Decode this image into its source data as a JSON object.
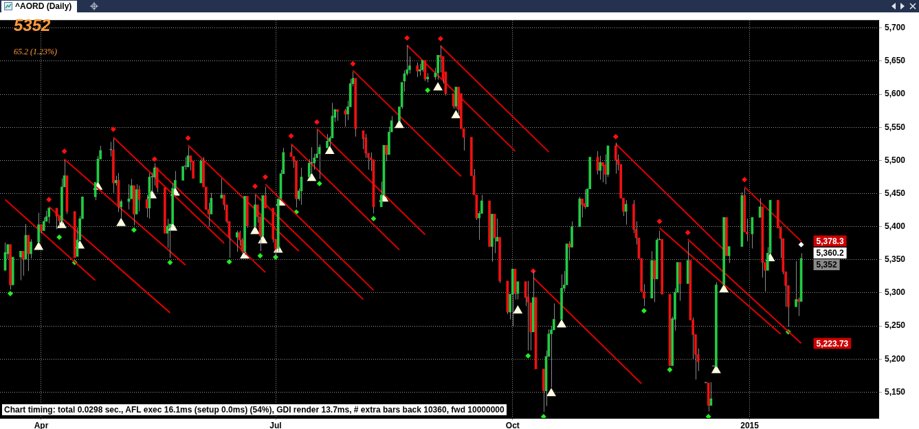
{
  "chart_data": {
    "type": "candlestick",
    "title": "^AORD (Daily)",
    "annotations": [
      "5352",
      "65.2  (1.23%)",
      "Chart timing: total 0.0298 sec., AFL exec 16.1ms (setup 0.0ms) (54%), GDI render 13.7ms, # extra bars back 10360, fwd 10000000",
      {
        "text": "5,378.3",
        "x": "2015-01-21",
        "y": 5378.3
      },
      {
        "text": "5,360.2",
        "x": "2015-01-21",
        "y": 5360.2
      },
      {
        "text": "5,352",
        "x": "2015-01-21",
        "y": 5352
      },
      {
        "text": "5,223.73",
        "x": "2015-01-21",
        "y": 5223.73
      }
    ],
    "x": [
      "2014-03-18",
      "2014-03-19",
      "2014-03-20",
      "2014-03-21",
      "2014-03-24",
      "2014-03-25",
      "2014-03-26",
      "2014-03-27",
      "2014-03-28",
      "2014-03-31",
      "2014-04-01",
      "2014-04-02",
      "2014-04-03",
      "2014-04-04",
      "2014-04-07",
      "2014-04-08",
      "2014-04-09",
      "2014-04-10",
      "2014-04-11",
      "2014-04-14",
      "2014-04-15",
      "2014-04-16",
      "2014-04-17",
      "2014-04-22",
      "2014-04-23",
      "2014-04-24",
      "2014-04-28",
      "2014-04-29",
      "2014-04-30",
      "2014-05-01",
      "2014-05-02",
      "2014-05-05",
      "2014-05-06",
      "2014-05-07",
      "2014-05-08",
      "2014-05-09",
      "2014-05-12",
      "2014-05-13",
      "2014-05-14",
      "2014-05-15",
      "2014-05-16",
      "2014-05-19",
      "2014-05-20",
      "2014-05-21",
      "2014-05-22",
      "2014-05-23",
      "2014-05-26",
      "2014-05-27",
      "2014-05-28",
      "2014-05-29",
      "2014-05-30",
      "2014-06-02",
      "2014-06-03",
      "2014-06-04",
      "2014-06-05",
      "2014-06-06",
      "2014-06-10",
      "2014-06-11",
      "2014-06-12",
      "2014-06-13",
      "2014-06-16",
      "2014-06-17",
      "2014-06-18",
      "2014-06-19",
      "2014-06-20",
      "2014-06-23",
      "2014-06-24",
      "2014-06-25",
      "2014-06-26",
      "2014-06-27",
      "2014-06-30",
      "2014-07-01",
      "2014-07-02",
      "2014-07-03",
      "2014-07-04",
      "2014-07-07",
      "2014-07-08",
      "2014-07-09",
      "2014-07-10",
      "2014-07-11",
      "2014-07-14",
      "2014-07-15",
      "2014-07-16",
      "2014-07-17",
      "2014-07-18",
      "2014-07-21",
      "2014-07-22",
      "2014-07-23",
      "2014-07-24",
      "2014-07-25",
      "2014-07-28",
      "2014-07-29",
      "2014-07-30",
      "2014-07-31",
      "2014-08-01",
      "2014-08-04",
      "2014-08-05",
      "2014-08-06",
      "2014-08-07",
      "2014-08-08",
      "2014-08-11",
      "2014-08-12",
      "2014-08-13",
      "2014-08-14",
      "2014-08-15",
      "2014-08-18",
      "2014-08-19",
      "2014-08-20",
      "2014-08-21",
      "2014-08-22",
      "2014-08-25",
      "2014-08-26",
      "2014-08-27",
      "2014-08-28",
      "2014-08-29",
      "2014-09-01",
      "2014-09-02",
      "2014-09-03",
      "2014-09-04",
      "2014-09-05",
      "2014-09-08",
      "2014-09-09",
      "2014-09-10",
      "2014-09-11",
      "2014-09-12",
      "2014-09-15",
      "2014-09-16",
      "2014-09-17",
      "2014-09-18",
      "2014-09-19",
      "2014-09-22",
      "2014-09-23",
      "2014-09-24",
      "2014-09-25",
      "2014-09-26",
      "2014-09-29",
      "2014-09-30",
      "2014-10-01",
      "2014-10-02",
      "2014-10-03",
      "2014-10-06",
      "2014-10-07",
      "2014-10-08",
      "2014-10-09",
      "2014-10-10",
      "2014-10-13",
      "2014-10-14",
      "2014-10-15",
      "2014-10-16",
      "2014-10-17",
      "2014-10-20",
      "2014-10-21",
      "2014-10-22",
      "2014-10-23",
      "2014-10-24",
      "2014-10-27",
      "2014-10-28",
      "2014-10-29",
      "2014-10-30",
      "2014-10-31",
      "2014-11-03",
      "2014-11-04",
      "2014-11-05",
      "2014-11-06",
      "2014-11-07",
      "2014-11-10",
      "2014-11-11",
      "2014-11-12",
      "2014-11-13",
      "2014-11-14",
      "2014-11-17",
      "2014-11-18",
      "2014-11-19",
      "2014-11-20",
      "2014-11-21",
      "2014-11-24",
      "2014-11-25",
      "2014-11-26",
      "2014-11-27",
      "2014-11-28",
      "2014-12-01",
      "2014-12-02",
      "2014-12-03",
      "2014-12-04",
      "2014-12-05",
      "2014-12-08",
      "2014-12-09",
      "2014-12-10",
      "2014-12-11",
      "2014-12-12",
      "2014-12-15",
      "2014-12-16",
      "2014-12-17",
      "2014-12-18",
      "2014-12-19",
      "2014-12-22",
      "2014-12-23",
      "2014-12-24",
      "2014-12-29",
      "2014-12-30",
      "2014-12-31",
      "2015-01-02",
      "2015-01-05",
      "2015-01-06",
      "2015-01-07",
      "2015-01-08",
      "2015-01-09",
      "2015-01-12",
      "2015-01-13",
      "2015-01-14",
      "2015-01-15",
      "2015-01-16",
      "2015-01-19",
      "2015-01-20",
      "2015-01-21"
    ],
    "ohlc": [
      [
        5334,
        5376,
        5332,
        5361
      ],
      [
        5359,
        5373,
        5351,
        5373
      ],
      [
        5373,
        5374,
        5305,
        5312
      ],
      [
        5312,
        5355,
        5311,
        5354
      ],
      [
        5354,
        5363,
        5319,
        5363
      ],
      [
        5363,
        5364,
        5326,
        5351
      ],
      [
        5351,
        5404,
        5350,
        5387
      ],
      [
        5387,
        5388,
        5333,
        5359
      ],
      [
        5359,
        5381,
        5352,
        5377
      ],
      [
        5377,
        5421,
        5376,
        5403
      ],
      [
        5403,
        5404,
        5390,
        5394
      ],
      [
        5394,
        5414,
        5393,
        5408
      ],
      [
        5408,
        5424,
        5406,
        5415
      ],
      [
        5415,
        5429,
        5405,
        5428
      ],
      [
        5428,
        5429,
        5396,
        5416
      ],
      [
        5416,
        5417,
        5400,
        5409
      ],
      [
        5409,
        5473,
        5405,
        5460
      ],
      [
        5460,
        5500,
        5459,
        5477
      ],
      [
        5477,
        5478,
        5419,
        5423
      ],
      [
        5423,
        5424,
        5352,
        5353
      ],
      [
        5355,
        5399,
        5353,
        5380
      ],
      [
        5380,
        5416,
        5378,
        5412
      ],
      [
        5412,
        5446,
        5410,
        5445
      ],
      [
        5445,
        5468,
        5440,
        5467
      ],
      [
        5467,
        5507,
        5466,
        5502
      ],
      [
        5502,
        5522,
        5500,
        5515
      ],
      [
        5516,
        5528,
        5506,
        5516
      ],
      [
        5516,
        5533,
        5451,
        5466
      ],
      [
        5466,
        5477,
        5462,
        5470
      ],
      [
        5470,
        5481,
        5422,
        5430
      ],
      [
        5430,
        5441,
        5412,
        5438
      ],
      [
        5438,
        5464,
        5426,
        5442
      ],
      [
        5442,
        5472,
        5440,
        5462
      ],
      [
        5462,
        5464,
        5402,
        5419
      ],
      [
        5419,
        5464,
        5418,
        5456
      ],
      [
        5456,
        5462,
        5423,
        5441
      ],
      [
        5441,
        5448,
        5414,
        5428
      ],
      [
        5428,
        5481,
        5412,
        5475
      ],
      [
        5475,
        5482,
        5453,
        5475
      ],
      [
        5475,
        5496,
        5462,
        5489
      ],
      [
        5489,
        5490,
        5452,
        5459
      ],
      [
        5459,
        5460,
        5389,
        5390
      ],
      [
        5390,
        5412,
        5368,
        5401
      ],
      [
        5399,
        5406,
        5353,
        5404
      ],
      [
        5404,
        5466,
        5403,
        5458
      ],
      [
        5458,
        5484,
        5457,
        5470
      ],
      [
        5470,
        5492,
        5469,
        5491
      ],
      [
        5491,
        5505,
        5486,
        5491
      ],
      [
        5490,
        5520,
        5489,
        5507
      ],
      [
        5507,
        5508,
        5485,
        5498
      ],
      [
        5499,
        5501,
        5472,
        5473
      ],
      [
        5466,
        5502,
        5464,
        5499
      ],
      [
        5499,
        5505,
        5459,
        5460
      ],
      [
        5460,
        5461,
        5424,
        5426
      ],
      [
        5426,
        5436,
        5400,
        5419
      ],
      [
        5419,
        5451,
        5417,
        5443
      ],
      [
        5443,
        5473,
        5441,
        5448
      ],
      [
        5448,
        5449,
        5425,
        5433
      ],
      [
        5433,
        5434,
        5405,
        5408
      ],
      [
        5408,
        5409,
        5353,
        5384
      ],
      [
        5384,
        5394,
        5362,
        5391
      ],
      [
        5391,
        5394,
        5371,
        5380
      ],
      [
        5380,
        5383,
        5360,
        5363
      ],
      [
        5363,
        5448,
        5357,
        5446
      ],
      [
        5446,
        5447,
        5398,
        5401
      ],
      [
        5401,
        5448,
        5398,
        5433
      ],
      [
        5433,
        5434,
        5406,
        5415
      ],
      [
        5415,
        5416,
        5363,
        5386
      ],
      [
        5386,
        5448,
        5384,
        5447
      ],
      [
        5447,
        5460,
        5427,
        5428
      ],
      [
        5428,
        5429,
        5376,
        5381
      ],
      [
        5381,
        5382,
        5352,
        5366
      ],
      [
        5367,
        5444,
        5362,
        5442
      ],
      [
        5443,
        5486,
        5441,
        5480
      ],
      [
        5480,
        5519,
        5478,
        5512
      ],
      [
        5512,
        5523,
        5505,
        5506
      ],
      [
        5506,
        5507,
        5489,
        5499
      ],
      [
        5499,
        5500,
        5429,
        5442
      ],
      [
        5442,
        5458,
        5439,
        5454
      ],
      [
        5454,
        5489,
        5433,
        5475
      ],
      [
        5475,
        5502,
        5473,
        5496
      ],
      [
        5496,
        5520,
        5480,
        5496
      ],
      [
        5496,
        5510,
        5486,
        5504
      ],
      [
        5504,
        5546,
        5502,
        5510
      ],
      [
        5510,
        5524,
        5472,
        5520
      ],
      [
        5519,
        5540,
        5517,
        5529
      ],
      [
        5529,
        5537,
        5520,
        5534
      ],
      [
        5534,
        5587,
        5532,
        5567
      ],
      [
        5565,
        5579,
        5558,
        5577
      ],
      [
        5577,
        5579,
        5560,
        5574
      ],
      [
        5575,
        5578,
        5551,
        5570
      ],
      [
        5570,
        5590,
        5561,
        5581
      ],
      [
        5581,
        5623,
        5579,
        5616
      ],
      [
        5616,
        5634,
        5612,
        5624
      ],
      [
        5624,
        5625,
        5536,
        5548
      ],
      [
        5545,
        5546,
        5517,
        5533
      ],
      [
        5534,
        5540,
        5504,
        5511
      ],
      [
        5511,
        5512,
        5486,
        5504
      ],
      [
        5504,
        5512,
        5484,
        5501
      ],
      [
        5501,
        5502,
        5420,
        5430
      ],
      [
        5430,
        5468,
        5428,
        5448
      ],
      [
        5448,
        5525,
        5446,
        5523
      ],
      [
        5523,
        5524,
        5499,
        5509
      ],
      [
        5509,
        5551,
        5508,
        5543
      ],
      [
        5543,
        5567,
        5541,
        5560
      ],
      [
        5560,
        5583,
        5559,
        5581
      ],
      [
        5581,
        5620,
        5578,
        5618
      ],
      [
        5620,
        5636,
        5604,
        5631
      ],
      [
        5631,
        5674,
        5628,
        5637
      ],
      [
        5637,
        5657,
        5631,
        5643
      ],
      [
        5643,
        5648,
        5626,
        5635
      ],
      [
        5635,
        5646,
        5628,
        5637
      ],
      [
        5637,
        5652,
        5634,
        5651
      ],
      [
        5651,
        5652,
        5620,
        5623
      ],
      [
        5623,
        5632,
        5618,
        5626
      ],
      [
        5626,
        5640,
        5622,
        5632
      ],
      [
        5632,
        5660,
        5622,
        5659
      ],
      [
        5659,
        5674,
        5633,
        5656
      ],
      [
        5657,
        5658,
        5616,
        5623
      ],
      [
        5634,
        5635,
        5598,
        5601
      ],
      [
        5601,
        5602,
        5578,
        5582
      ],
      [
        5582,
        5612,
        5578,
        5611
      ],
      [
        5611,
        5612,
        5570,
        5577
      ],
      [
        5601,
        5602,
        5546,
        5548
      ],
      [
        5548,
        5549,
        5515,
        5535
      ],
      [
        5535,
        5536,
        5476,
        5477
      ],
      [
        5477,
        5487,
        5446,
        5448
      ],
      [
        5448,
        5449,
        5410,
        5413
      ],
      [
        5413,
        5424,
        5380,
        5420
      ],
      [
        5420,
        5448,
        5418,
        5439
      ],
      [
        5439,
        5440,
        5369,
        5370
      ],
      [
        5370,
        5420,
        5347,
        5419
      ],
      [
        5419,
        5420,
        5360,
        5383
      ],
      [
        5378,
        5412,
        5376,
        5384
      ],
      [
        5384,
        5385,
        5315,
        5318
      ],
      [
        5318,
        5319,
        5268,
        5271
      ],
      [
        5271,
        5300,
        5260,
        5298
      ],
      [
        5298,
        5337,
        5250,
        5336
      ],
      [
        5336,
        5337,
        5290,
        5299
      ],
      [
        5299,
        5318,
        5290,
        5317
      ],
      [
        5317,
        5318,
        5280,
        5293
      ],
      [
        5294,
        5318,
        5213,
        5286
      ],
      [
        5285,
        5286,
        5213,
        5241
      ],
      [
        5241,
        5333,
        5240,
        5293
      ],
      [
        5293,
        5294,
        5184,
        5185
      ],
      [
        5185,
        5186,
        5120,
        5152
      ],
      [
        5152,
        5213,
        5129,
        5204
      ],
      [
        5204,
        5245,
        5203,
        5238
      ],
      [
        5238,
        5250,
        5157,
        5244
      ],
      [
        5244,
        5284,
        5242,
        5260
      ],
      [
        5260,
        5328,
        5258,
        5307
      ],
      [
        5307,
        5333,
        5302,
        5312
      ],
      [
        5312,
        5376,
        5310,
        5374
      ],
      [
        5374,
        5378,
        5349,
        5369
      ],
      [
        5369,
        5408,
        5367,
        5400
      ],
      [
        5400,
        5445,
        5398,
        5442
      ],
      [
        5442,
        5443,
        5414,
        5433
      ],
      [
        5435,
        5456,
        5427,
        5430
      ],
      [
        5430,
        5458,
        5429,
        5457
      ],
      [
        5457,
        5506,
        5456,
        5505
      ],
      [
        5505,
        5514,
        5479,
        5485
      ],
      [
        5485,
        5507,
        5471,
        5497
      ],
      [
        5497,
        5498,
        5467,
        5492
      ],
      [
        5493,
        5509,
        5464,
        5479
      ],
      [
        5479,
        5522,
        5475,
        5522
      ],
      [
        5522,
        5527,
        5480,
        5501
      ],
      [
        5501,
        5509,
        5485,
        5494
      ],
      [
        5494,
        5495,
        5441,
        5443
      ],
      [
        5443,
        5445,
        5416,
        5423
      ],
      [
        5423,
        5440,
        5403,
        5434
      ],
      [
        5434,
        5440,
        5390,
        5396
      ],
      [
        5396,
        5408,
        5373,
        5383
      ],
      [
        5383,
        5384,
        5350,
        5352
      ],
      [
        5352,
        5353,
        5300,
        5302
      ],
      [
        5302,
        5313,
        5280,
        5292
      ],
      [
        5292,
        5363,
        5290,
        5349
      ],
      [
        5349,
        5350,
        5286,
        5321
      ],
      [
        5321,
        5383,
        5320,
        5380
      ],
      [
        5380,
        5394,
        5378,
        5381
      ],
      [
        5381,
        5382,
        5297,
        5298
      ],
      [
        5298,
        5299,
        5189,
        5190
      ],
      [
        5190,
        5264,
        5189,
        5261
      ],
      [
        5260,
        5307,
        5243,
        5301
      ],
      [
        5301,
        5347,
        5300,
        5346
      ],
      [
        5346,
        5347,
        5288,
        5314
      ],
      [
        5314,
        5378,
        5313,
        5349
      ],
      [
        5349,
        5350,
        5258,
        5259
      ],
      [
        5259,
        5263,
        5200,
        5237
      ],
      [
        5237,
        5238,
        5169,
        5207
      ],
      [
        5207,
        5216,
        5182,
        5196
      ],
      [
        5164,
        5165,
        5163,
        5164
      ],
      [
        5164,
        5165,
        5121,
        5130
      ],
      [
        5130,
        5165,
        5129,
        5140
      ],
      [
        5189,
        5190,
        5188,
        5189
      ],
      [
        5189,
        5316,
        5188,
        5312
      ],
      [
        5312,
        5415,
        5310,
        5414
      ],
      [
        5414,
        5415,
        5355,
        5356
      ],
      [
        5356,
        5372,
        5345,
        5370
      ],
      [
        5370,
        5452,
        5369,
        5447
      ],
      [
        5447,
        5458,
        5391,
        5392
      ],
      [
        5392,
        5412,
        5378,
        5389
      ],
      [
        5389,
        5415,
        5367,
        5414
      ],
      [
        5414,
        5443,
        5412,
        5430
      ],
      [
        5430,
        5431,
        5323,
        5346
      ],
      [
        5346,
        5347,
        5302,
        5334
      ],
      [
        5334,
        5369,
        5333,
        5360
      ],
      [
        5360,
        5441,
        5359,
        5440
      ],
      [
        5440,
        5441,
        5397,
        5398
      ],
      [
        5399,
        5400,
        5353,
        5382
      ],
      [
        5382,
        5383,
        5328,
        5332
      ],
      [
        5332,
        5333,
        5279,
        5311
      ],
      [
        5311,
        5312,
        5249,
        5279
      ],
      [
        5279,
        5348,
        5278,
        5290
      ],
      [
        5290,
        5293,
        5265,
        5287
      ],
      [
        5287,
        5360,
        5286,
        5352
      ]
    ],
    "colors": [
      "#22cc44",
      "#22cc44",
      "#ee1111",
      "#22cc44",
      "#22cc44",
      "#ee1111",
      "#22cc44",
      "#ee1111",
      "#22cc44",
      "#22cc44",
      "#ee1111",
      "#22cc44",
      "#22cc44",
      "#22cc44",
      "#ee1111",
      "#ee1111",
      "#22cc44",
      "#22cc44",
      "#ee1111",
      "#ee1111",
      "#22cc44",
      "#22cc44",
      "#22cc44",
      "#22cc44",
      "#22cc44",
      "#22cc44",
      "#808080",
      "#ee1111",
      "#22cc44",
      "#ee1111",
      "#22cc44",
      "#22cc44",
      "#22cc44",
      "#ee1111",
      "#22cc44",
      "#ee1111",
      "#ee1111",
      "#22cc44",
      "#808080",
      "#22cc44",
      "#ee1111",
      "#ee1111",
      "#22cc44",
      "#22cc44",
      "#22cc44",
      "#22cc44",
      "#22cc44",
      "#808080",
      "#22cc44",
      "#ee1111",
      "#ee1111",
      "#22cc44",
      "#ee1111",
      "#ee1111",
      "#ee1111",
      "#22cc44",
      "#22cc44",
      "#ee1111",
      "#ee1111",
      "#ee1111",
      "#22cc44",
      "#ee1111",
      "#ee1111",
      "#22cc44",
      "#ee1111",
      "#22cc44",
      "#ee1111",
      "#ee1111",
      "#22cc44",
      "#ee1111",
      "#ee1111",
      "#ee1111",
      "#22cc44",
      "#22cc44",
      "#22cc44",
      "#ee1111",
      "#ee1111",
      "#ee1111",
      "#22cc44",
      "#22cc44",
      "#22cc44",
      "#808080",
      "#22cc44",
      "#22cc44",
      "#22cc44",
      "#22cc44",
      "#22cc44",
      "#22cc44",
      "#22cc44",
      "#ee1111",
      "#ee1111",
      "#22cc44",
      "#22cc44",
      "#22cc44",
      "#ee1111",
      "#ee1111",
      "#ee1111",
      "#ee1111",
      "#ee1111",
      "#ee1111",
      "#22cc44",
      "#22cc44",
      "#ee1111",
      "#22cc44",
      "#22cc44",
      "#22cc44",
      "#22cc44",
      "#22cc44",
      "#22cc44",
      "#22cc44",
      "#ee1111",
      "#22cc44",
      "#22cc44",
      "#ee1111",
      "#22cc44",
      "#22cc44",
      "#22cc44",
      "#ee1111",
      "#ee1111",
      "#ee1111",
      "#ee1111",
      "#22cc44",
      "#ee1111",
      "#ee1111",
      "#ee1111",
      "#ee1111",
      "#ee1111",
      "#ee1111",
      "#22cc44",
      "#22cc44",
      "#ee1111",
      "#22cc44",
      "#ee1111",
      "#22cc44",
      "#ee1111",
      "#ee1111",
      "#22cc44",
      "#22cc44",
      "#ee1111",
      "#22cc44",
      "#ee1111",
      "#ee1111",
      "#ee1111",
      "#22cc44",
      "#ee1111",
      "#ee1111",
      "#22cc44",
      "#22cc44",
      "#22cc44",
      "#22cc44",
      "#22cc44",
      "#22cc44",
      "#22cc44",
      "#ee1111",
      "#22cc44",
      "#22cc44",
      "#ee1111",
      "#ee1111",
      "#22cc44",
      "#22cc44",
      "#ee1111",
      "#22cc44",
      "#ee1111",
      "#ee1111",
      "#22cc44",
      "#ee1111",
      "#ee1111",
      "#ee1111",
      "#ee1111",
      "#22cc44",
      "#ee1111",
      "#ee1111",
      "#ee1111",
      "#ee1111",
      "#ee1111",
      "#22cc44",
      "#ee1111",
      "#22cc44",
      "#22cc44",
      "#ee1111",
      "#ee1111",
      "#22cc44",
      "#22cc44",
      "#22cc44",
      "#ee1111",
      "#22cc44",
      "#ee1111",
      "#ee1111",
      "#ee1111",
      "#ee1111",
      "#808080",
      "#ee1111",
      "#22cc44",
      "#808080",
      "#22cc44",
      "#22cc44",
      "#ee1111",
      "#22cc44",
      "#22cc44",
      "#ee1111",
      "#ee1111",
      "#22cc44",
      "#22cc44",
      "#ee1111",
      "#ee1111",
      "#22cc44",
      "#22cc44",
      "#ee1111",
      "#ee1111",
      "#ee1111",
      "#ee1111",
      "#ee1111",
      "#22cc44",
      "#ee1111",
      "#22cc44"
    ],
    "series": [
      {
        "type": "line",
        "color": "#e00000",
        "line_style": "solid",
        "marker": "none",
        "x": [
          "2014-03-18",
          "2014-04-22"
        ],
        "values": [
          5441,
          5319
        ]
      },
      {
        "type": "line",
        "color": "#e00000",
        "line_style": "solid",
        "marker": "none",
        "x": [
          "2014-04-04",
          "2014-05-21"
        ],
        "values": [
          5430,
          5270
        ]
      },
      {
        "type": "line",
        "color": "#e00000",
        "line_style": "solid",
        "marker": "none",
        "x": [
          "2014-04-10",
          "2014-05-27"
        ],
        "values": [
          5502,
          5342
        ]
      },
      {
        "type": "line",
        "color": "#e00000",
        "line_style": "solid",
        "marker": "none",
        "x": [
          "2014-04-29",
          "2014-06-11"
        ],
        "values": [
          5535,
          5375
        ]
      },
      {
        "type": "line",
        "color": "#e00000",
        "line_style": "solid",
        "marker": "none",
        "x": [
          "2014-05-15",
          "2014-06-27"
        ],
        "values": [
          5491,
          5331
        ]
      },
      {
        "type": "line",
        "color": "#e00000",
        "line_style": "solid",
        "marker": "none",
        "x": [
          "2014-05-28",
          "2014-07-10"
        ],
        "values": [
          5523,
          5363
        ]
      },
      {
        "type": "line",
        "color": "#e00000",
        "line_style": "solid",
        "marker": "none",
        "x": [
          "2014-06-23",
          "2014-08-04"
        ],
        "values": [
          5449,
          5290
        ]
      },
      {
        "type": "line",
        "color": "#e00000",
        "line_style": "solid",
        "marker": "none",
        "x": [
          "2014-06-27",
          "2014-08-08"
        ],
        "values": [
          5464,
          5304
        ]
      },
      {
        "type": "line",
        "color": "#e00000",
        "line_style": "solid",
        "marker": "none",
        "x": [
          "2014-07-07",
          "2014-08-18"
        ],
        "values": [
          5525,
          5365
        ]
      },
      {
        "type": "line",
        "color": "#e00000",
        "line_style": "solid",
        "marker": "none",
        "x": [
          "2014-07-17",
          "2014-08-28"
        ],
        "values": [
          5548,
          5388
        ]
      },
      {
        "type": "line",
        "color": "#e00000",
        "line_style": "solid",
        "marker": "none",
        "x": [
          "2014-07-31",
          "2014-09-11"
        ],
        "values": [
          5636,
          5476
        ]
      },
      {
        "type": "line",
        "color": "#e00000",
        "line_style": "solid",
        "marker": "none",
        "x": [
          "2014-08-21",
          "2014-10-02"
        ],
        "values": [
          5674,
          5514
        ]
      },
      {
        "type": "line",
        "color": "#e00000",
        "line_style": "solid",
        "marker": "none",
        "x": [
          "2014-09-03",
          "2014-10-15"
        ],
        "values": [
          5673,
          5513
        ]
      },
      {
        "type": "line",
        "color": "#e00000",
        "line_style": "solid",
        "marker": "none",
        "x": [
          "2014-10-09",
          "2014-11-20"
        ],
        "values": [
          5323,
          5163
        ]
      },
      {
        "type": "line",
        "color": "#e00000",
        "line_style": "solid",
        "marker": "none",
        "x": [
          "2014-11-10",
          "2014-12-22"
        ],
        "values": [
          5525,
          5365
        ]
      },
      {
        "type": "line",
        "color": "#e00000",
        "line_style": "solid",
        "marker": "none",
        "x": [
          "2014-11-27",
          "2015-01-13"
        ],
        "values": [
          5398,
          5238
        ]
      },
      {
        "type": "line",
        "color": "#e00000",
        "line_style": "solid",
        "marker": "none",
        "x": [
          "2014-12-08",
          "2015-01-21"
        ],
        "values": [
          5381,
          5224
        ]
      },
      {
        "type": "line",
        "color": "#e00000",
        "line_style": "solid",
        "marker": "none",
        "x": [
          "2014-12-30",
          "2015-01-21"
        ],
        "values": [
          5460,
          5378
        ]
      },
      {
        "type": "scatter",
        "color": "#ff1010",
        "marker": "diamond",
        "x": [
          "2014-04-04",
          "2014-04-10",
          "2014-04-29",
          "2014-05-15",
          "2014-05-28",
          "2014-06-23",
          "2014-06-27",
          "2014-07-07",
          "2014-07-17",
          "2014-07-31",
          "2014-08-21",
          "2014-09-03",
          "2014-10-09",
          "2014-11-10",
          "2014-11-27",
          "2014-12-08",
          "2014-12-30"
        ],
        "values": [
          5441,
          5514,
          5547,
          5502,
          5534,
          5461,
          5475,
          5537,
          5558,
          5646,
          5685,
          5684,
          5333,
          5536,
          5408,
          5391,
          5471
        ]
      },
      {
        "type": "scatter",
        "color": "#22ee22",
        "marker": "diamond",
        "x": [
          "2014-03-20",
          "2014-04-08",
          "2014-04-14",
          "2014-05-07",
          "2014-05-21",
          "2014-06-13",
          "2014-06-25",
          "2014-07-01",
          "2014-07-09",
          "2014-07-18",
          "2014-08-08",
          "2014-08-29",
          "2014-10-07",
          "2014-10-13",
          "2014-11-21",
          "2014-12-01",
          "2014-12-16",
          "2015-01-16"
        ],
        "values": [
          5299,
          5384,
          5346,
          5395,
          5346,
          5347,
          5356,
          5354,
          5422,
          5465,
          5412,
          5606,
          5205,
          5113,
          5273,
          5184,
          5113,
          5241
        ]
      },
      {
        "type": "scatter",
        "color": "#fffbe0",
        "marker": "triangle",
        "x": [
          "2014-03-31",
          "2014-04-09",
          "2014-04-16",
          "2014-04-23",
          "2014-05-02",
          "2014-05-14",
          "2014-05-22",
          "2014-05-23",
          "2014-06-19",
          "2014-06-23",
          "2014-06-26",
          "2014-07-02",
          "2014-07-03",
          "2014-07-15",
          "2014-07-22",
          "2014-08-12",
          "2014-08-18",
          "2014-09-02",
          "2014-09-09",
          "2014-10-03",
          "2014-10-16",
          "2014-10-20",
          "2014-12-19",
          "2014-12-22",
          "2015-01-09"
        ],
        "values": [
          5369,
          5402,
          5371,
          5460,
          5405,
          5447,
          5398,
          5451,
          5356,
          5393,
          5379,
          5365,
          5436,
          5473,
          5514,
          5442,
          5553,
          5610,
          5568,
          5273,
          5148,
          5252,
          5183,
          5305,
          5352
        ]
      },
      {
        "type": "scatter",
        "color": "#ffffff",
        "marker": "diamond",
        "x": [
          "2015-01-21"
        ],
        "values": [
          5373
        ]
      }
    ],
    "xlim": [
      "2014-03-16",
      "2015-02-20"
    ],
    "xticks": [
      {
        "value": "2014-04-01",
        "label": "Apr"
      },
      {
        "value": "2014-07-01",
        "label": "Jul"
      },
      {
        "value": "2014-10-01",
        "label": "Oct"
      },
      {
        "value": "2015-01-01",
        "label": "2015"
      }
    ],
    "ylim": [
      5111,
      5712
    ],
    "yticks": [
      {
        "value": 5150,
        "label": "5,150"
      },
      {
        "value": 5200,
        "label": "5,200"
      },
      {
        "value": 5250,
        "label": "5,250"
      },
      {
        "value": 5300,
        "label": "5,300"
      },
      {
        "value": 5350,
        "label": "5,350"
      },
      {
        "value": 5400,
        "label": "5,400"
      },
      {
        "value": 5450,
        "label": "5,450"
      },
      {
        "value": 5500,
        "label": "5,500"
      },
      {
        "value": 5550,
        "label": "5,550"
      },
      {
        "value": 5600,
        "label": "5,600"
      },
      {
        "value": 5650,
        "label": "5,650"
      },
      {
        "value": 5700,
        "label": "5,700"
      }
    ],
    "grid": true
  }
}
